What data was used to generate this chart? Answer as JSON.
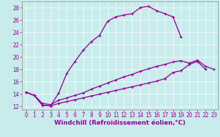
{
  "xlabel": "Windchill (Refroidissement éolien,°C)",
  "bg_color": "#c8ecec",
  "line_color": "#990099",
  "xlim": [
    -0.5,
    23.5
  ],
  "ylim": [
    11.5,
    29.0
  ],
  "yticks": [
    12,
    14,
    16,
    18,
    20,
    22,
    24,
    26,
    28
  ],
  "xticks": [
    0,
    1,
    2,
    3,
    4,
    5,
    6,
    7,
    8,
    9,
    10,
    11,
    12,
    13,
    14,
    15,
    16,
    17,
    18,
    19,
    20,
    21,
    22,
    23
  ],
  "line1_x": [
    0,
    1,
    2,
    3,
    4,
    5,
    6,
    7,
    8,
    9,
    10,
    11,
    12,
    13,
    14,
    15,
    16,
    17,
    18,
    19
  ],
  "line1_y": [
    14.3,
    13.8,
    12.2,
    12.1,
    14.2,
    17.4,
    19.3,
    21.1,
    22.5,
    23.5,
    25.8,
    26.5,
    26.8,
    27.0,
    28.0,
    28.2,
    27.5,
    27.0,
    26.5,
    23.2
  ],
  "line2_x": [
    0,
    1,
    2,
    3,
    4,
    5,
    6,
    7,
    8,
    9,
    10,
    11,
    12,
    13,
    14,
    15,
    16,
    17,
    18,
    19,
    20,
    21,
    22,
    23
  ],
  "line2_y": [
    14.3,
    13.8,
    12.5,
    12.3,
    13.0,
    13.4,
    13.8,
    14.2,
    14.8,
    15.3,
    15.8,
    16.3,
    16.8,
    17.2,
    17.7,
    18.1,
    18.5,
    18.8,
    19.2,
    19.4,
    19.0,
    19.5,
    18.5,
    18.0
  ],
  "line3_x": [
    0,
    1,
    2,
    3,
    4,
    5,
    6,
    7,
    8,
    9,
    10,
    11,
    12,
    13,
    14,
    15,
    16,
    17,
    18,
    19,
    20,
    21,
    22
  ],
  "line3_y": [
    14.3,
    13.8,
    12.2,
    12.1,
    12.5,
    12.8,
    13.1,
    13.4,
    13.7,
    14.0,
    14.3,
    14.6,
    14.9,
    15.2,
    15.5,
    15.8,
    16.1,
    16.5,
    17.5,
    17.8,
    18.8,
    19.3,
    18.0
  ],
  "marker": "+",
  "markersize": 3,
  "linewidth": 1.0,
  "xlabel_fontsize": 6.5,
  "tick_fontsize": 5.5
}
